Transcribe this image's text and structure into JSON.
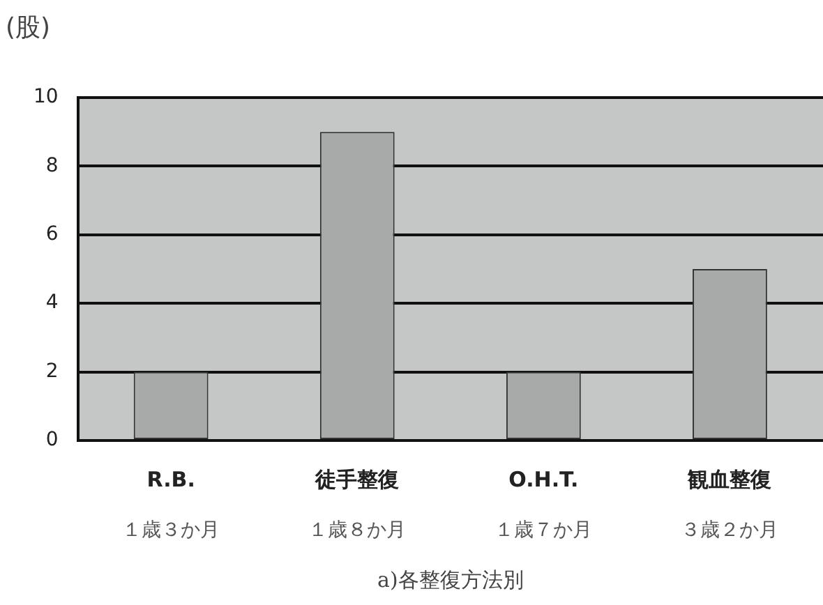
{
  "chart_data": {
    "type": "bar",
    "ylabel": "(股)",
    "xlabel": "a)各整復方法別",
    "categories": [
      "R.B.",
      "徒手整復",
      "O.H.T.",
      "観血整復"
    ],
    "values": [
      2,
      9,
      2,
      5
    ],
    "color": "#a8aaaa",
    "annotations": [
      "１歳３か月",
      "１歳８か月",
      "１歳７か月",
      "３歳２か月"
    ],
    "ylim": [
      0,
      10
    ],
    "yticks": [
      0,
      2,
      4,
      6,
      8,
      10
    ],
    "grid": "y",
    "legend": false
  }
}
